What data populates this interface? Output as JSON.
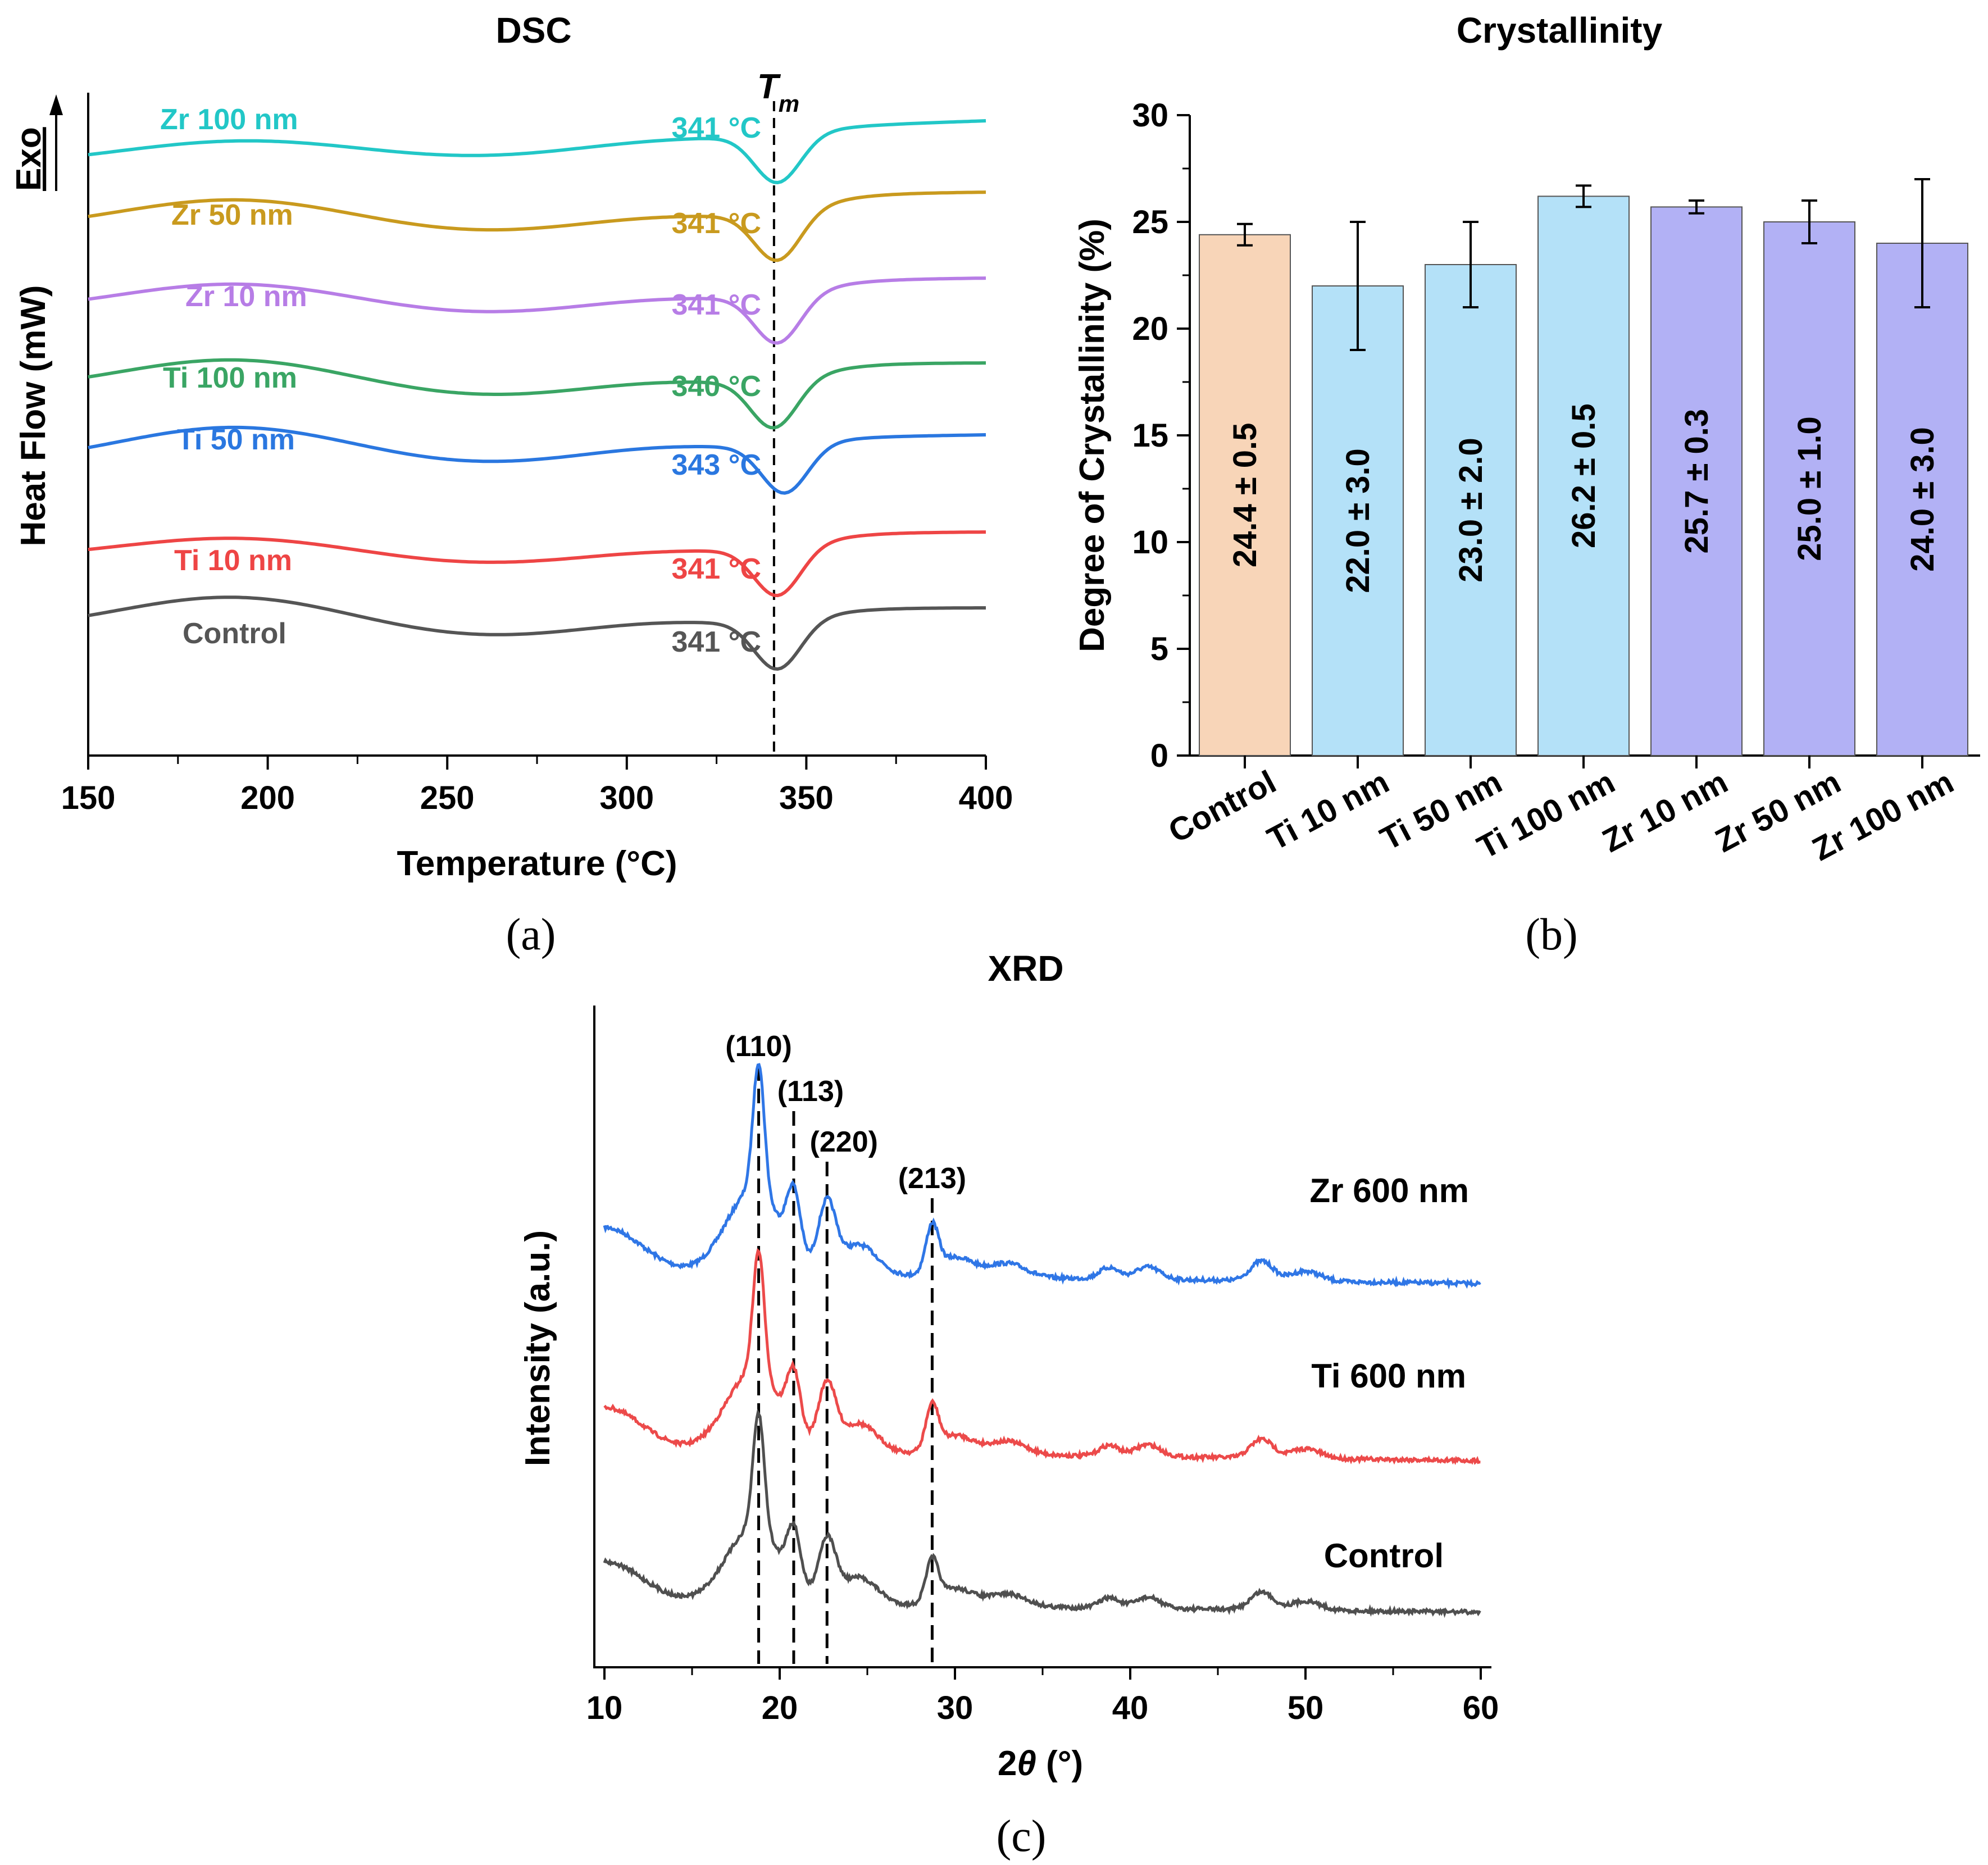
{
  "chart_data": [
    {
      "panel": "(a)",
      "type": "line",
      "title": "DSC",
      "xlabel": "Temperature (°C)",
      "ylabel": "Heat Flow (mW)",
      "exo_label": "Exo",
      "tm_label": "T",
      "tm_sub": "m",
      "xlim": [
        150,
        400
      ],
      "xticks": [
        150,
        200,
        250,
        300,
        350,
        400
      ],
      "tm_line_x": 341,
      "series": [
        {
          "name": "Zr 100 nm",
          "color": "#22c7c7",
          "peak_label": "341 °C",
          "peak": 341,
          "offset": 6,
          "start": 0.9,
          "hump": 0.3,
          "end": 0.5
        },
        {
          "name": "Zr 50 nm",
          "color": "#c99a1e",
          "peak_label": "341 °C",
          "peak": 341,
          "offset": 5,
          "start": 0.3,
          "hump": 0.5,
          "end": 1.2
        },
        {
          "name": "Zr 10 nm",
          "color": "#b77de6",
          "peak_label": "341 °C",
          "peak": 341,
          "offset": 4,
          "start": 0.3,
          "hump": 0.45,
          "end": 1.0
        },
        {
          "name": "Ti 100 nm",
          "color": "#3aa564",
          "peak_label": "340 °C",
          "peak": 340,
          "offset": 3,
          "start": 0.1,
          "hump": 0.55,
          "end": 1.1
        },
        {
          "name": "Ti 50 nm",
          "color": "#2a77e0",
          "peak_label": "343 °C",
          "peak": 343,
          "offset": 2,
          "start": 0.4,
          "hump": 0.6,
          "end": 0.65
        },
        {
          "name": "Ti 10 nm",
          "color": "#ee4545",
          "peak_label": "341 °C",
          "peak": 341,
          "offset": 1,
          "start": 0.15,
          "hump": 0.35,
          "end": 0.95
        },
        {
          "name": "Control",
          "color": "#555555",
          "peak_label": "341 °C",
          "peak": 341,
          "offset": 0,
          "start": 0.05,
          "hump": 0.6,
          "end": 0.95
        }
      ]
    },
    {
      "panel": "(b)",
      "type": "bar",
      "title": "Crystallinity",
      "xlabel": "",
      "ylabel": "Degree of Crystallinity (%)",
      "ylim": [
        0,
        30
      ],
      "yticks": [
        0,
        5,
        10,
        15,
        20,
        25,
        30
      ],
      "categories": [
        "Control",
        "Ti 10 nm",
        "Ti 50 nm",
        "Ti 100 nm",
        "Zr 10 nm",
        "Zr 50 nm",
        "Zr 100 nm"
      ],
      "values": [
        24.4,
        22.0,
        23.0,
        26.2,
        25.7,
        25.0,
        24.0
      ],
      "errors": [
        0.5,
        3.0,
        2.0,
        0.5,
        0.3,
        1.0,
        3.0
      ],
      "labels": [
        "24.4 ± 0.5",
        "22.0 ± 3.0",
        "23.0 ± 2.0",
        "26.2 ± 0.5",
        "25.7 ± 0.3",
        "25.0 ± 1.0",
        "24.0 ± 3.0"
      ],
      "colors": [
        "#f8d5b8",
        "#b4e1f8",
        "#b4e1f8",
        "#b4e1f8",
        "#b2b1f5",
        "#b2b1f5",
        "#b2b1f5"
      ]
    },
    {
      "panel": "(c)",
      "type": "line",
      "title": "XRD",
      "xlabel": "2θ (°)",
      "xlabel_main": "2",
      "xlabel_theta": "θ",
      "xlabel_unit": " (°)",
      "ylabel": "Intensity (a.u.)",
      "xlim": [
        10,
        60
      ],
      "xticks": [
        10,
        20,
        30,
        40,
        50,
        60
      ],
      "peaks": [
        {
          "label": "(110)",
          "x": 18.8
        },
        {
          "label": "(113)",
          "x": 20.8
        },
        {
          "label": "(220)",
          "x": 22.7
        },
        {
          "label": "(213)",
          "x": 28.7
        }
      ],
      "series": [
        {
          "name": "Zr 600 nm",
          "color": "#2f76e6",
          "offset": 2
        },
        {
          "name": "Ti 600 nm",
          "color": "#ec4a4a",
          "offset": 1
        },
        {
          "name": "Control",
          "color": "#4f4f4f",
          "offset": 0
        }
      ]
    }
  ]
}
